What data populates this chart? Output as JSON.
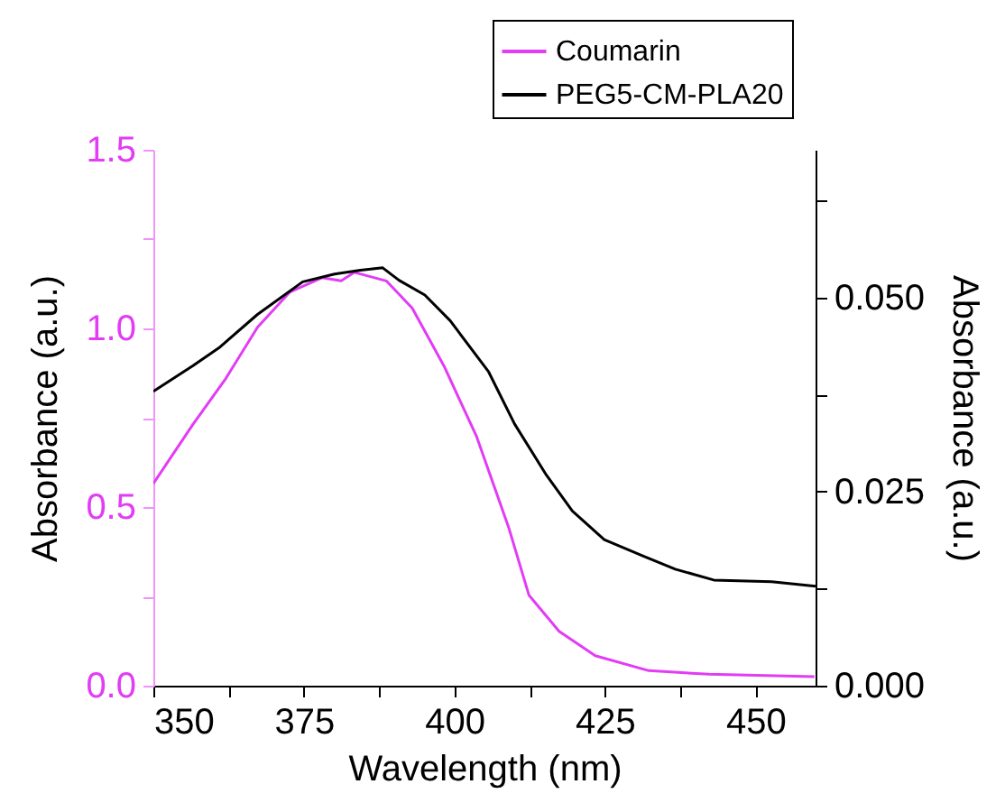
{
  "chart_data": {
    "type": "line",
    "xlabel": "Wavelength (nm)",
    "ylabel": "Absorbance (a.u.)",
    "y2label": "Absorbance (a.u.)",
    "xlim": [
      350,
      460
    ],
    "xticks": [
      350,
      {
        "value": 362.5,
        "label": null
      },
      375,
      {
        "value": 387.5,
        "label": null
      },
      400,
      {
        "value": 412.5,
        "label": null
      },
      425,
      {
        "value": 437.5,
        "label": null
      },
      450
    ],
    "ylim": [
      0,
      1.5
    ],
    "yticks": [
      {
        "value": 0,
        "label": "0.0"
      },
      {
        "value": 0.25,
        "label": null
      },
      0.5,
      {
        "value": 0.75,
        "label": null
      },
      {
        "value": 1,
        "label": "1.0"
      },
      {
        "value": 1.25,
        "label": null
      },
      1.5
    ],
    "y2lim": [
      0,
      0.069
    ],
    "y2ticks": [
      {
        "value": 0,
        "label": "0.000"
      },
      {
        "value": 0.0125,
        "label": null
      },
      {
        "value": 0.025,
        "label": "0.025"
      },
      {
        "value": 0.0375,
        "label": null
      },
      {
        "value": 0.05,
        "label": "0.050"
      },
      {
        "value": 0.0625,
        "label": null
      }
    ],
    "legend": "top",
    "series": [
      {
        "name": "Coumarin",
        "color": "#e23cf5",
        "x": [
          350,
          356.6,
          362,
          367.3,
          372.7,
          378,
          381.2,
          383.4,
          388.7,
          393,
          398.3,
          403.7,
          409,
          412.4,
          417.4,
          423.4,
          432.3,
          442.3,
          459.8
        ],
        "values": [
          0.566,
          0.732,
          0.859,
          1.003,
          1.102,
          1.142,
          1.133,
          1.157,
          1.133,
          1.057,
          0.894,
          0.697,
          0.444,
          0.253,
          0.152,
          0.084,
          0.042,
          0.032,
          0.025
        ]
      },
      {
        "name": "PEG5-CM-PLA20",
        "color": "#000000",
        "axis": "y2",
        "x": [
          350,
          356.6,
          360.9,
          367.3,
          374.8,
          380.1,
          384.4,
          388.1,
          390.8,
          395.1,
          399.3,
          405.7,
          410,
          415.3,
          419.6,
          424.9,
          431.3,
          436.7,
          443.1,
          452.7,
          460
        ],
        "values": [
          0.0379,
          0.0412,
          0.0435,
          0.0478,
          0.052,
          0.053,
          0.0535,
          0.0538,
          0.0522,
          0.0503,
          0.047,
          0.0404,
          0.0337,
          0.0271,
          0.0225,
          0.0188,
          0.0167,
          0.015,
          0.0136,
          0.0134,
          0.0128
        ]
      }
    ]
  }
}
